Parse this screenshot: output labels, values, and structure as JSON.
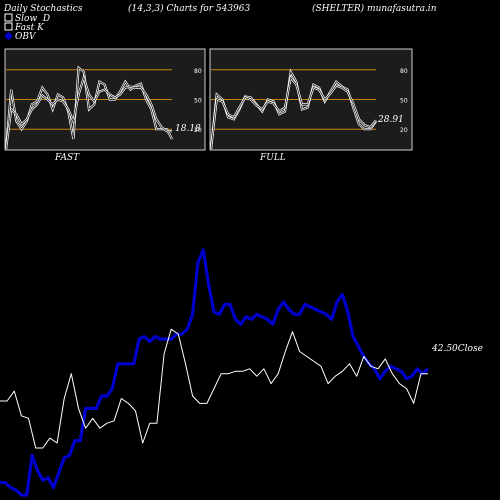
{
  "header": {
    "title": "Daily Stochastics",
    "params": "(14,3,3) Charts for 543963",
    "symbol": "(SHELTER) munafasutra.in"
  },
  "legend": [
    {
      "label": "Slow  D",
      "swatch": "#ffffff",
      "style": "box"
    },
    {
      "label": "Fast K",
      "swatch": "#ffffff",
      "style": "box"
    },
    {
      "label": "OBV",
      "swatch": "#0000cc",
      "style": "dot"
    }
  ],
  "colors": {
    "background": "#000000",
    "panel": "#1c1c1c",
    "level_line": "#c8820a",
    "stoch_line": "#ffffff",
    "obv_line": "#0000cc",
    "price_line": "#ffffff"
  },
  "chart_data": [
    {
      "type": "line",
      "name": "fast-stochastic",
      "caption": "FAST",
      "ylim": [
        0,
        100
      ],
      "levels": [
        20,
        50,
        80
      ],
      "level_labels": [
        "20",
        "50",
        "80"
      ],
      "last_label": "18.18",
      "series": [
        {
          "name": "Fast K",
          "values": [
            0,
            60,
            28,
            20,
            28,
            45,
            48,
            62,
            55,
            40,
            55,
            52,
            38,
            10,
            82,
            78,
            40,
            45,
            68,
            65,
            50,
            50,
            58,
            68,
            60,
            64,
            66,
            50,
            40,
            20,
            20,
            20,
            10
          ]
        },
        {
          "name": "Slow  D",
          "values": [
            0,
            40,
            35,
            25,
            30,
            40,
            45,
            54,
            50,
            45,
            50,
            48,
            40,
            28,
            55,
            72,
            55,
            48,
            58,
            60,
            55,
            52,
            55,
            62,
            63,
            62,
            62,
            55,
            45,
            30,
            22,
            18,
            18
          ]
        }
      ]
    },
    {
      "type": "line",
      "name": "full-stochastic",
      "caption": "FULL",
      "ylim": [
        0,
        100
      ],
      "levels": [
        20,
        50,
        80
      ],
      "level_labels": [
        "20",
        "50",
        "80"
      ],
      "last_label": "28.91",
      "series": [
        {
          "name": "Fast K",
          "values": [
            0,
            55,
            50,
            32,
            30,
            40,
            53,
            52,
            45,
            38,
            50,
            48,
            35,
            38,
            78,
            68,
            40,
            42,
            65,
            62,
            48,
            58,
            68,
            63,
            60,
            42,
            25,
            20,
            20,
            28
          ]
        },
        {
          "name": "Slow  D",
          "values": [
            0,
            50,
            48,
            35,
            32,
            42,
            52,
            50,
            44,
            40,
            48,
            46,
            38,
            42,
            72,
            65,
            45,
            45,
            62,
            60,
            50,
            56,
            64,
            62,
            58,
            46,
            30,
            24,
            22,
            29
          ]
        }
      ]
    },
    {
      "type": "line",
      "name": "price-obv",
      "last_label": "42.50Close",
      "series": [
        {
          "name": "OBV",
          "values": [
            0.6,
            0.6,
            0.4,
            0.3,
            0.1,
            0.1,
            1.7,
            1.1,
            0.7,
            0.8,
            0.4,
            1.0,
            1.6,
            1.7,
            2.3,
            2.3,
            3.6,
            3.6,
            3.6,
            4.1,
            4.1,
            4.4,
            5.4,
            5.4,
            5.4,
            5.4,
            6.4,
            6.5,
            6.3,
            6.5,
            6.4,
            6.4,
            6.4,
            6.6,
            6.6,
            6.8,
            7.4,
            9.5,
            10.0,
            8.6,
            7.5,
            7.4,
            7.8,
            7.8,
            7.2,
            7.0,
            7.3,
            7.2,
            7.4,
            7.3,
            7.2,
            7.0,
            7.6,
            7.9,
            7.6,
            7.4,
            7.4,
            7.8,
            7.7,
            7.6,
            7.5,
            7.4,
            7.2,
            7.9,
            8.2,
            7.5,
            6.5,
            6.1,
            5.7,
            5.4,
            5.2,
            4.8,
            5.1,
            5.3,
            5.2,
            5.1,
            4.8,
            4.9,
            5.2,
            5.0,
            5.2
          ]
        },
        {
          "name": "Close",
          "values": [
            3.9,
            3.9,
            4.3,
            3.3,
            3.2,
            2.0,
            2.0,
            2.4,
            2.2,
            4.0,
            5.0,
            3.6,
            2.8,
            3.2,
            2.8,
            3.0,
            3.1,
            4.0,
            3.8,
            3.5,
            2.2,
            3.0,
            3.0,
            5.8,
            6.8,
            6.6,
            5.4,
            4.1,
            3.8,
            3.8,
            4.4,
            5.0,
            5.0,
            5.1,
            5.1,
            5.2,
            4.9,
            5.2,
            4.6,
            5.0,
            5.9,
            6.7,
            5.9,
            5.7,
            5.5,
            5.3,
            4.6,
            4.9,
            5.1,
            5.4,
            4.9,
            5.7,
            5.3,
            5.2,
            5.6,
            5.0,
            4.6,
            4.4,
            3.8,
            5.0,
            5.0
          ]
        }
      ]
    }
  ]
}
